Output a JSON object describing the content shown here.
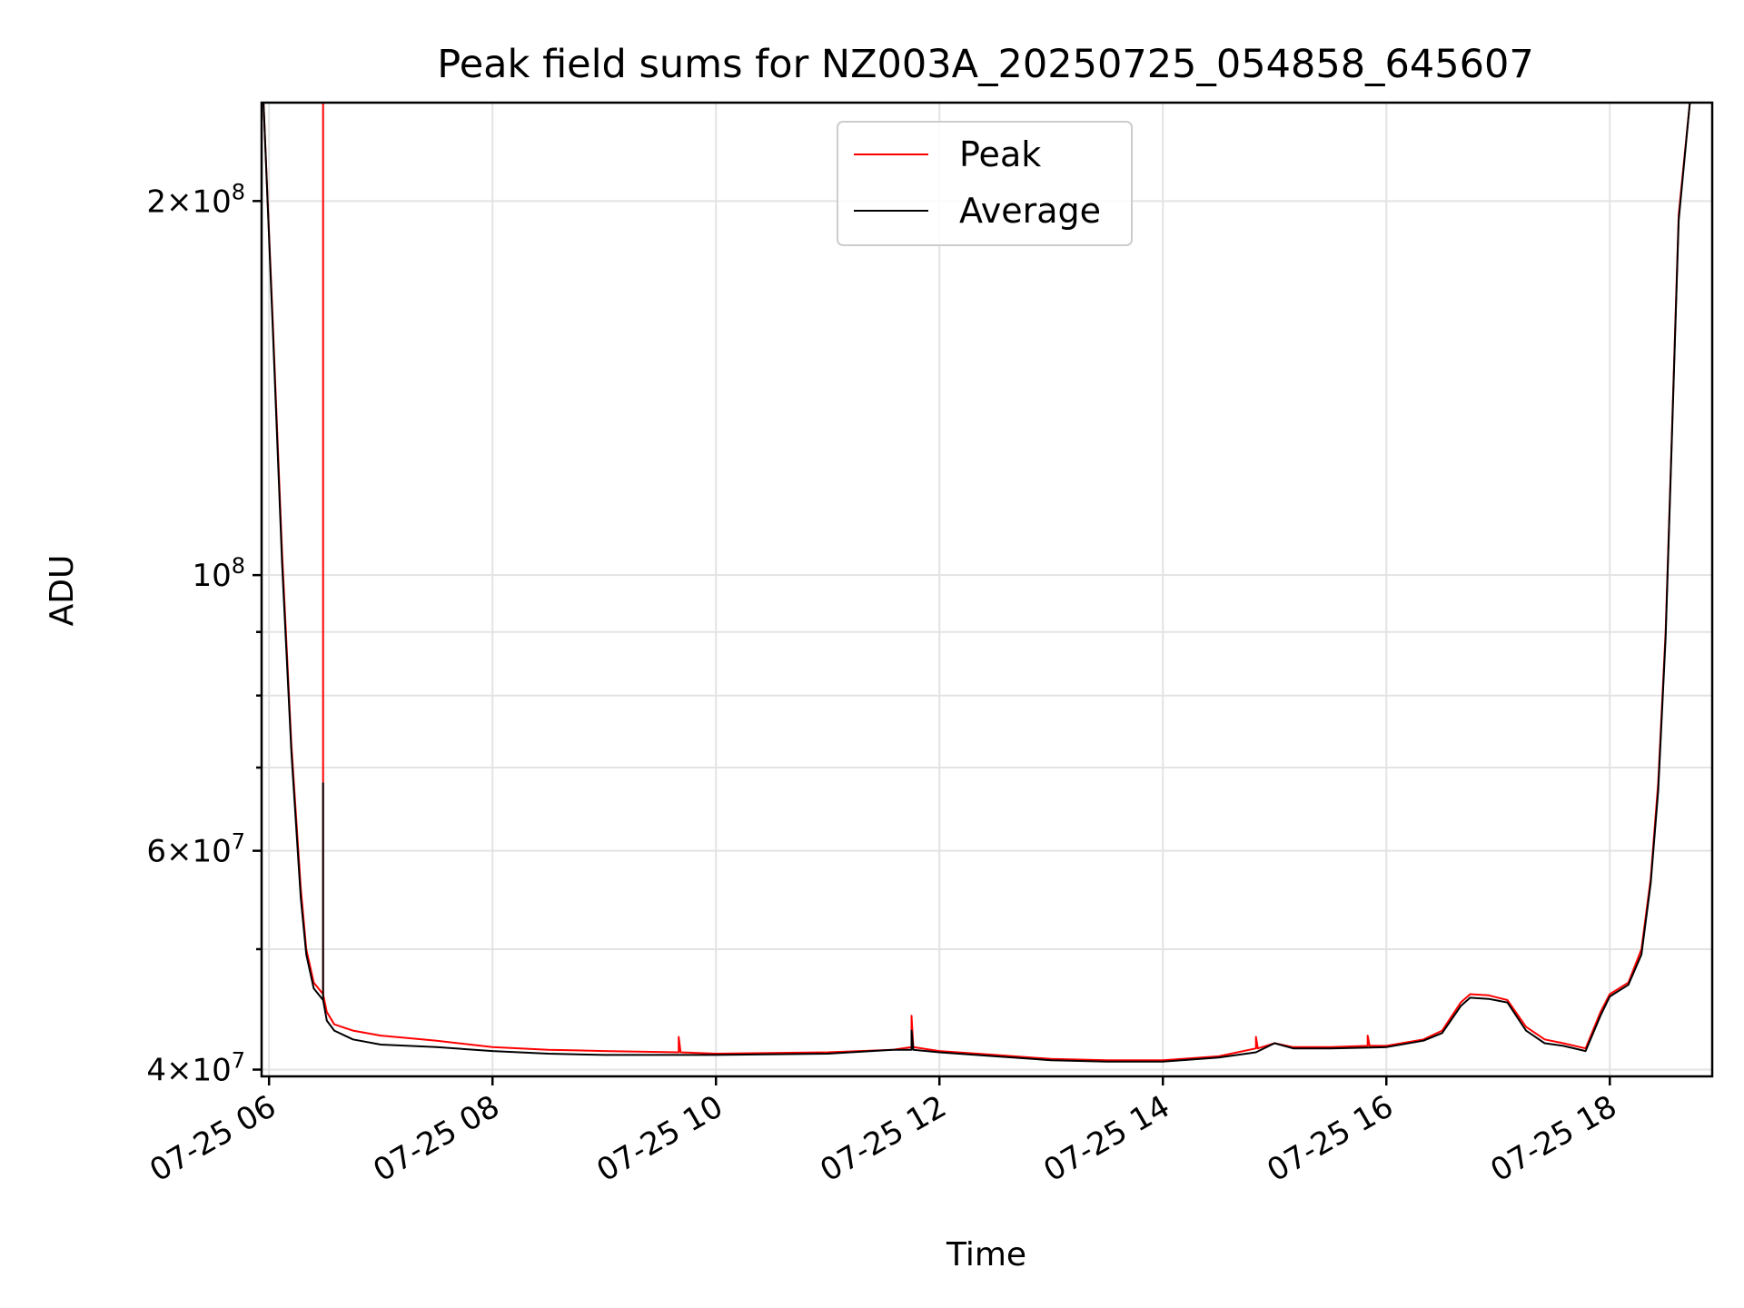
{
  "chart_data": {
    "type": "line",
    "title": "Peak field sums for NZ003A_20250725_054858_645607",
    "xlabel": "Time",
    "ylabel": "ADU",
    "yscale": "log",
    "ylim": [
      39500000,
      240000000
    ],
    "xlim": [
      "2025-07-25 05:56",
      "2025-07-25 18:55"
    ],
    "grid": true,
    "legend_position": "top-center",
    "x_ticks": [
      {
        "value": "2025-07-25 06:00",
        "label": "07-25 06"
      },
      {
        "value": "2025-07-25 08:00",
        "label": "07-25 08"
      },
      {
        "value": "2025-07-25 10:00",
        "label": "07-25 10"
      },
      {
        "value": "2025-07-25 12:00",
        "label": "07-25 12"
      },
      {
        "value": "2025-07-25 14:00",
        "label": "07-25 14"
      },
      {
        "value": "2025-07-25 16:00",
        "label": "07-25 16"
      },
      {
        "value": "2025-07-25 18:00",
        "label": "07-25 18"
      }
    ],
    "y_ticks": [
      {
        "value": 40000000,
        "mantissa": "4",
        "exponent": "7"
      },
      {
        "value": 60000000,
        "mantissa": "6",
        "exponent": "7"
      },
      {
        "value": 100000000,
        "mantissa": "",
        "exponent": "8"
      },
      {
        "value": 200000000,
        "mantissa": "2",
        "exponent": "8"
      }
    ],
    "y_minor_ticks": [
      50000000,
      70000000,
      80000000,
      90000000
    ],
    "series": [
      {
        "name": "Peak",
        "color": "#ff0000",
        "x": [
          "2025-07-25 05:57",
          "2025-07-25 06:02",
          "2025-07-25 06:07",
          "2025-07-25 06:12",
          "2025-07-25 06:17",
          "2025-07-25 06:20",
          "2025-07-25 06:24",
          "2025-07-25 06:29",
          "2025-07-25 06:29",
          "2025-07-25 06:29",
          "2025-07-25 06:31",
          "2025-07-25 06:35",
          "2025-07-25 06:45",
          "2025-07-25 07:00",
          "2025-07-25 07:30",
          "2025-07-25 08:00",
          "2025-07-25 08:30",
          "2025-07-25 09:00",
          "2025-07-25 09:40",
          "2025-07-25 09:40",
          "2025-07-25 09:41",
          "2025-07-25 10:00",
          "2025-07-25 11:00",
          "2025-07-25 11:35",
          "2025-07-25 11:45",
          "2025-07-25 11:45",
          "2025-07-25 11:46",
          "2025-07-25 12:00",
          "2025-07-25 12:30",
          "2025-07-25 13:00",
          "2025-07-25 13:30",
          "2025-07-25 14:00",
          "2025-07-25 14:30",
          "2025-07-25 14:50",
          "2025-07-25 14:50",
          "2025-07-25 14:51",
          "2025-07-25 15:00",
          "2025-07-25 15:10",
          "2025-07-25 15:30",
          "2025-07-25 15:50",
          "2025-07-25 15:50",
          "2025-07-25 15:51",
          "2025-07-25 16:00",
          "2025-07-25 16:20",
          "2025-07-25 16:30",
          "2025-07-25 16:40",
          "2025-07-25 16:45",
          "2025-07-25 16:55",
          "2025-07-25 17:05",
          "2025-07-25 17:15",
          "2025-07-25 17:25",
          "2025-07-25 17:35",
          "2025-07-25 17:47",
          "2025-07-25 17:55",
          "2025-07-25 18:00",
          "2025-07-25 18:10",
          "2025-07-25 18:17",
          "2025-07-25 18:22",
          "2025-07-25 18:26",
          "2025-07-25 18:30",
          "2025-07-25 18:33",
          "2025-07-25 18:37",
          "2025-07-25 18:43"
        ],
        "y": [
          240000000,
          160000000,
          104000000,
          73000000,
          56000000,
          50000000,
          47000000,
          46000000,
          240000000,
          46000000,
          44500000,
          43500000,
          43000000,
          42600000,
          42200000,
          41700000,
          41500000,
          41400000,
          41300000,
          42500000,
          41300000,
          41200000,
          41300000,
          41500000,
          41700000,
          44200000,
          41700000,
          41400000,
          41100000,
          40800000,
          40700000,
          40700000,
          41000000,
          41600000,
          42500000,
          41600000,
          42000000,
          41700000,
          41700000,
          41800000,
          42600000,
          41800000,
          41800000,
          42300000,
          43000000,
          45300000,
          46000000,
          45900000,
          45500000,
          43300000,
          42300000,
          42000000,
          41600000,
          44500000,
          46000000,
          47000000,
          50000000,
          57000000,
          68000000,
          90000000,
          125000000,
          195000000,
          240000000
        ]
      },
      {
        "name": "Average",
        "color": "#000000",
        "x": [
          "2025-07-25 05:57",
          "2025-07-25 06:02",
          "2025-07-25 06:07",
          "2025-07-25 06:12",
          "2025-07-25 06:17",
          "2025-07-25 06:20",
          "2025-07-25 06:24",
          "2025-07-25 06:29",
          "2025-07-25 06:29",
          "2025-07-25 06:29",
          "2025-07-25 06:31",
          "2025-07-25 06:35",
          "2025-07-25 06:45",
          "2025-07-25 07:00",
          "2025-07-25 07:30",
          "2025-07-25 08:00",
          "2025-07-25 08:30",
          "2025-07-25 09:00",
          "2025-07-25 10:00",
          "2025-07-25 11:00",
          "2025-07-25 11:35",
          "2025-07-25 11:45",
          "2025-07-25 11:45",
          "2025-07-25 11:46",
          "2025-07-25 12:00",
          "2025-07-25 12:30",
          "2025-07-25 13:00",
          "2025-07-25 13:30",
          "2025-07-25 14:00",
          "2025-07-25 14:30",
          "2025-07-25 14:50",
          "2025-07-25 15:00",
          "2025-07-25 15:10",
          "2025-07-25 15:30",
          "2025-07-25 16:00",
          "2025-07-25 16:20",
          "2025-07-25 16:30",
          "2025-07-25 16:40",
          "2025-07-25 16:45",
          "2025-07-25 16:55",
          "2025-07-25 17:05",
          "2025-07-25 17:15",
          "2025-07-25 17:25",
          "2025-07-25 17:35",
          "2025-07-25 17:47",
          "2025-07-25 17:55",
          "2025-07-25 18:00",
          "2025-07-25 18:10",
          "2025-07-25 18:17",
          "2025-07-25 18:22",
          "2025-07-25 18:26",
          "2025-07-25 18:30",
          "2025-07-25 18:33",
          "2025-07-25 18:37",
          "2025-07-25 18:43"
        ],
        "y": [
          240000000,
          158000000,
          102000000,
          72000000,
          55000000,
          49500000,
          46500000,
          45500000,
          68000000,
          45500000,
          43800000,
          43000000,
          42300000,
          41900000,
          41700000,
          41400000,
          41200000,
          41100000,
          41100000,
          41200000,
          41500000,
          41500000,
          43000000,
          41500000,
          41300000,
          41000000,
          40700000,
          40600000,
          40600000,
          40900000,
          41300000,
          42000000,
          41600000,
          41600000,
          41700000,
          42200000,
          42800000,
          45000000,
          45700000,
          45600000,
          45300000,
          43000000,
          42000000,
          41800000,
          41400000,
          44200000,
          45800000,
          46800000,
          49500000,
          56500000,
          67000000,
          89000000,
          124000000,
          193000000,
          240000000
        ]
      }
    ]
  }
}
